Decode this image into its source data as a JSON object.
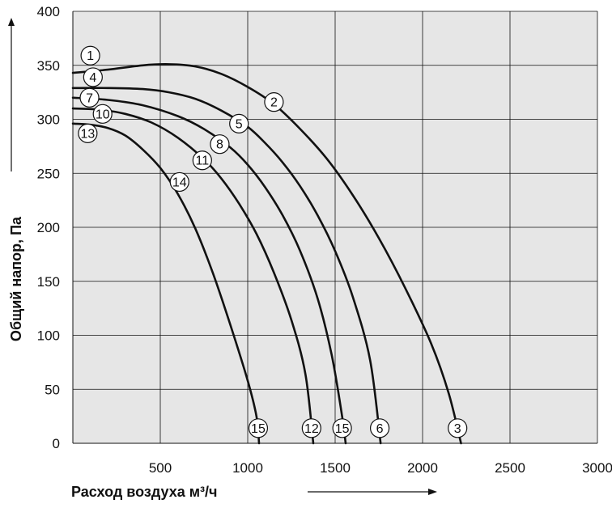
{
  "chart_data": {
    "type": "line",
    "title": "",
    "xlabel": "Расход воздуха м³/ч",
    "ylabel": "Общий напор, Па",
    "xlim": [
      0,
      3000
    ],
    "ylim": [
      0,
      400
    ],
    "x_ticks": [
      "500",
      "1000",
      "1500",
      "2000",
      "2500",
      "3000"
    ],
    "y_ticks": [
      "0",
      "50",
      "100",
      "150",
      "200",
      "250",
      "300",
      "350",
      "400"
    ],
    "grid": true,
    "plot_background": "#e6e6e6",
    "line_color": "#111111",
    "series": [
      {
        "points": [
          [
            0,
            343
          ],
          [
            200,
            346
          ],
          [
            400,
            350
          ],
          [
            550,
            351
          ],
          [
            700,
            349
          ],
          [
            850,
            342
          ],
          [
            1000,
            330
          ],
          [
            1150,
            314
          ],
          [
            1300,
            291
          ],
          [
            1450,
            264
          ],
          [
            1600,
            230
          ],
          [
            1750,
            190
          ],
          [
            1900,
            144
          ],
          [
            2050,
            92
          ],
          [
            2150,
            46
          ],
          [
            2220,
            0
          ]
        ]
      },
      {
        "points": [
          [
            0,
            329
          ],
          [
            200,
            329
          ],
          [
            400,
            328
          ],
          [
            550,
            325
          ],
          [
            700,
            319
          ],
          [
            850,
            308
          ],
          [
            1000,
            293
          ],
          [
            1100,
            278
          ],
          [
            1200,
            260
          ],
          [
            1300,
            238
          ],
          [
            1400,
            211
          ],
          [
            1500,
            178
          ],
          [
            1600,
            136
          ],
          [
            1700,
            77
          ],
          [
            1760,
            0
          ]
        ]
      },
      {
        "points": [
          [
            0,
            320
          ],
          [
            200,
            318
          ],
          [
            400,
            313
          ],
          [
            600,
            303
          ],
          [
            750,
            291
          ],
          [
            900,
            274
          ],
          [
            1000,
            258
          ],
          [
            1100,
            237
          ],
          [
            1200,
            211
          ],
          [
            1300,
            178
          ],
          [
            1400,
            134
          ],
          [
            1480,
            82
          ],
          [
            1540,
            25
          ],
          [
            1560,
            0
          ]
        ]
      },
      {
        "points": [
          [
            0,
            310
          ],
          [
            150,
            309
          ],
          [
            300,
            305
          ],
          [
            450,
            297
          ],
          [
            600,
            283
          ],
          [
            750,
            263
          ],
          [
            850,
            245
          ],
          [
            950,
            222
          ],
          [
            1050,
            194
          ],
          [
            1150,
            158
          ],
          [
            1250,
            114
          ],
          [
            1330,
            64
          ],
          [
            1375,
            0
          ]
        ]
      },
      {
        "points": [
          [
            0,
            296
          ],
          [
            100,
            295
          ],
          [
            200,
            292
          ],
          [
            300,
            285
          ],
          [
            400,
            272
          ],
          [
            500,
            255
          ],
          [
            600,
            231
          ],
          [
            700,
            199
          ],
          [
            800,
            158
          ],
          [
            900,
            110
          ],
          [
            1000,
            58
          ],
          [
            1050,
            25
          ],
          [
            1065,
            0
          ]
        ]
      }
    ],
    "labels": [
      {
        "text": "1",
        "x": 100,
        "y": 359
      },
      {
        "text": "4",
        "x": 115,
        "y": 339
      },
      {
        "text": "7",
        "x": 95,
        "y": 320
      },
      {
        "text": "10",
        "x": 170,
        "y": 305
      },
      {
        "text": "13",
        "x": 85,
        "y": 287
      },
      {
        "text": "2",
        "x": 1150,
        "y": 316
      },
      {
        "text": "5",
        "x": 950,
        "y": 296
      },
      {
        "text": "8",
        "x": 840,
        "y": 277
      },
      {
        "text": "11",
        "x": 740,
        "y": 262
      },
      {
        "text": "14",
        "x": 610,
        "y": 242
      },
      {
        "text": "15",
        "x": 1060,
        "y": 14
      },
      {
        "text": "12",
        "x": 1365,
        "y": 14
      },
      {
        "text": "15",
        "x": 1540,
        "y": 14
      },
      {
        "text": "6",
        "x": 1755,
        "y": 14
      },
      {
        "text": "3",
        "x": 2200,
        "y": 14
      }
    ]
  }
}
